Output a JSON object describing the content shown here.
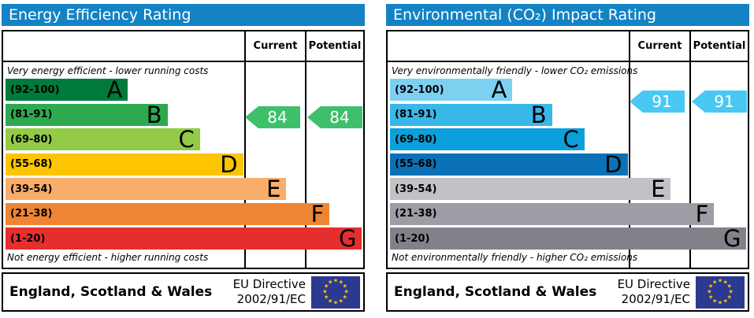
{
  "colors": {
    "header_bg": "#1383c4",
    "flag_bg": "#2b3a8e",
    "flag_star": "#ffcc00"
  },
  "panels": [
    {
      "title": "Energy Efficiency Rating",
      "columns": {
        "current": "Current",
        "potential": "Potential"
      },
      "top_note": "Very energy efficient - lower running costs",
      "bottom_note": "Not energy efficient - higher running costs",
      "bands": [
        {
          "range": "(92-100)",
          "letter": "A",
          "color": "#007b3b",
          "width_pct": 34
        },
        {
          "range": "(81-91)",
          "letter": "B",
          "color": "#2daa50",
          "width_pct": 45
        },
        {
          "range": "(69-80)",
          "letter": "C",
          "color": "#93ca48",
          "width_pct": 54
        },
        {
          "range": "(55-68)",
          "letter": "D",
          "color": "#fdc500",
          "width_pct": 66
        },
        {
          "range": "(39-54)",
          "letter": "E",
          "color": "#f9ad6b",
          "width_pct": 78
        },
        {
          "range": "(21-38)",
          "letter": "F",
          "color": "#ee8534",
          "width_pct": 90
        },
        {
          "range": "(1-20)",
          "letter": "G",
          "color": "#e52e2e",
          "width_pct": 99
        }
      ],
      "current": {
        "value": "84",
        "band": "B",
        "color": "#3ec06a"
      },
      "potential": {
        "value": "84",
        "band": "B",
        "color": "#3ec06a"
      },
      "footer": {
        "region": "England, Scotland & Wales",
        "directive_line1": "EU Directive",
        "directive_line2": "2002/91/EC"
      }
    },
    {
      "title": "Environmental (CO₂) Impact Rating",
      "columns": {
        "current": "Current",
        "potential": "Potential"
      },
      "top_note": "Very environmentally friendly - lower CO₂ emissions",
      "bottom_note": "Not environmentally friendly - higher CO₂ emissions",
      "bands": [
        {
          "range": "(92-100)",
          "letter": "A",
          "color": "#7ed0f1",
          "width_pct": 34
        },
        {
          "range": "(81-91)",
          "letter": "B",
          "color": "#38b7e9",
          "width_pct": 45
        },
        {
          "range": "(69-80)",
          "letter": "C",
          "color": "#0aa0db",
          "width_pct": 54
        },
        {
          "range": "(55-68)",
          "letter": "D",
          "color": "#0b71b6",
          "width_pct": 66
        },
        {
          "range": "(39-54)",
          "letter": "E",
          "color": "#c2c2c6",
          "width_pct": 78
        },
        {
          "range": "(21-38)",
          "letter": "F",
          "color": "#9d9da5",
          "width_pct": 90
        },
        {
          "range": "(1-20)",
          "letter": "G",
          "color": "#818189",
          "width_pct": 99
        }
      ],
      "current": {
        "value": "91",
        "band": "B",
        "color": "#47c9f3"
      },
      "potential": {
        "value": "91",
        "band": "B",
        "color": "#47c9f3"
      },
      "footer": {
        "region": "England, Scotland & Wales",
        "directive_line1": "EU Directive",
        "directive_line2": "2002/91/EC"
      }
    }
  ],
  "chart_data": [
    {
      "type": "bar",
      "title": "Energy Efficiency Rating",
      "categories": [
        "A (92-100)",
        "B (81-91)",
        "C (69-80)",
        "D (55-68)",
        "E (39-54)",
        "F (21-38)",
        "G (1-20)"
      ],
      "values": [
        34,
        45,
        54,
        66,
        78,
        90,
        99
      ],
      "ylabel": "rating band (bar length is decorative, % of column width)",
      "annotations": [
        "Very energy efficient - lower running costs",
        "Not energy efficient - higher running costs"
      ],
      "current_rating": 84,
      "potential_rating": 84,
      "current_band": "B",
      "potential_band": "B"
    },
    {
      "type": "bar",
      "title": "Environmental (CO₂) Impact Rating",
      "categories": [
        "A (92-100)",
        "B (81-91)",
        "C (69-80)",
        "D (55-68)",
        "E (39-54)",
        "F (21-38)",
        "G (1-20)"
      ],
      "values": [
        34,
        45,
        54,
        66,
        78,
        90,
        99
      ],
      "ylabel": "rating band (bar length is decorative, % of column width)",
      "annotations": [
        "Very environmentally friendly - lower CO₂ emissions",
        "Not environmentally friendly - higher CO₂ emissions"
      ],
      "current_rating": 91,
      "potential_rating": 91,
      "current_band": "B",
      "potential_band": "B"
    }
  ]
}
